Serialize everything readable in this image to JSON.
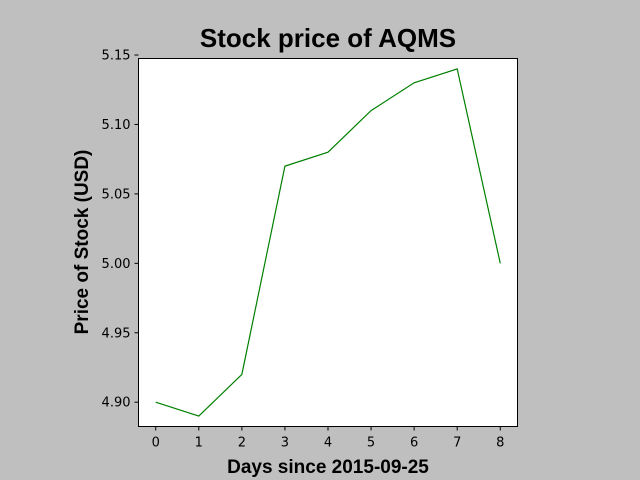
{
  "chart_data": {
    "type": "line",
    "title": "Stock price of AQMS",
    "xlabel": "Days since 2015-09-25",
    "ylabel": "Price of Stock (USD)",
    "x": [
      0,
      1,
      2,
      3,
      4,
      5,
      6,
      7,
      8
    ],
    "series": [
      {
        "values": [
          4.9,
          4.89,
          4.92,
          5.07,
          5.08,
          5.11,
          5.13,
          5.14,
          5.0
        ],
        "color": "#008000"
      }
    ],
    "xticks": [
      0,
      1,
      2,
      3,
      4,
      5,
      6,
      7,
      8
    ],
    "xtick_labels": [
      "0",
      "1",
      "2",
      "3",
      "4",
      "5",
      "6",
      "7",
      "8"
    ],
    "yticks": [
      4.9,
      4.95,
      5.0,
      5.05,
      5.1,
      5.15
    ],
    "ytick_labels": [
      "4.90",
      "4.95",
      "5.00",
      "5.05",
      "5.10",
      "5.15"
    ],
    "xlim": [
      -0.4,
      8.4
    ],
    "ylim": [
      4.8825,
      5.1475
    ],
    "grid": false,
    "legend": false,
    "background": "#bfbfbf",
    "plot_background": "#ffffff"
  }
}
